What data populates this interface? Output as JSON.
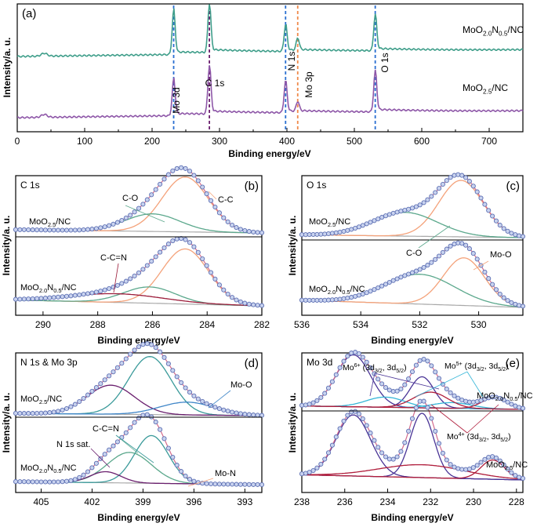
{
  "colors": {
    "frame": "#000000",
    "teal": "#3f9e8a",
    "purple": "#8e57a8",
    "blue_dash": "#2a6fd1",
    "orange_dash": "#f08a4b",
    "orange": "#f4a27a",
    "green": "#5ba88c",
    "gray": "#a8a8a8",
    "dark_red": "#9c1c3a",
    "dark_purple": "#6a1f6e",
    "mid_teal": "#3a9a9a",
    "blue": "#3f86c8",
    "indigo": "#4a3496",
    "cyan": "#36b6d8",
    "crimson": "#b01e3c",
    "marker_fill": "#c9d3ef",
    "marker_edge": "#5c6fb3"
  },
  "chart_data": [
    {
      "id": "a",
      "panel_label": "(a)",
      "type": "line",
      "xlabel": "Binding energy/eV",
      "ylabel": "Intensity/a. u.",
      "xlim": [
        0,
        750
      ],
      "x_ticks": [
        "0",
        "100",
        "200",
        "300",
        "400",
        "500",
        "600",
        "700"
      ],
      "series": [
        {
          "name": "MoO2.0N0.5/NC",
          "label_main": "MoO",
          "sub1": "2.0",
          "mid": "N",
          "sub2": "0.5",
          "tail": "/NC",
          "color_key": "teal",
          "peaks": [
            {
              "x": 232,
              "h": 0.9
            },
            {
              "x": 285,
              "h": 1.0
            },
            {
              "x": 398,
              "h": 0.55
            },
            {
              "x": 416,
              "h": 0.25
            },
            {
              "x": 531,
              "h": 0.75
            }
          ]
        },
        {
          "name": "MoO2.5/NC",
          "label_main": "MoO",
          "sub1": "2.5",
          "mid": "",
          "sub2": "",
          "tail": "/NC",
          "color_key": "purple",
          "peaks": [
            {
              "x": 232,
              "h": 0.75
            },
            {
              "x": 285,
              "h": 1.0
            },
            {
              "x": 398,
              "h": 0.65
            },
            {
              "x": 416,
              "h": 0.2
            },
            {
              "x": 531,
              "h": 0.85
            }
          ]
        }
      ],
      "annotations": [
        {
          "text": "Mo 3d",
          "x": 232,
          "color_key": "blue_dash"
        },
        {
          "text": "C 1s",
          "x": 285,
          "color_key": "dark_purple"
        },
        {
          "text": "N 1s",
          "x": 398,
          "color_key": "blue_dash"
        },
        {
          "text": "Mo 3p",
          "x": 416,
          "color_key": "orange_dash"
        },
        {
          "text": "O 1s",
          "x": 531,
          "color_key": "blue_dash"
        }
      ]
    },
    {
      "id": "b",
      "panel_label": "(b)",
      "title": "C 1s",
      "type": "line",
      "xlabel": "Binding energy/eV",
      "ylabel": "Intensity/a. u.",
      "xlim": [
        291,
        282
      ],
      "x_ticks": [
        "290",
        "288",
        "286",
        "284",
        "282"
      ],
      "sample_labels": [
        "MoO2.5/NC",
        "MoO2.0N0.5/NC"
      ],
      "top_components": [
        {
          "name": "C-C",
          "center": 284.8,
          "height": 1.0,
          "width": 0.85,
          "color_key": "orange"
        },
        {
          "name": "C-O",
          "center": 286.0,
          "height": 0.32,
          "width": 1.0,
          "color_key": "green"
        }
      ],
      "bottom_components": [
        {
          "name": "C-C",
          "center": 284.8,
          "height": 0.95,
          "width": 0.85,
          "color_key": "orange"
        },
        {
          "name": "C-O",
          "center": 286.1,
          "height": 0.28,
          "width": 0.95,
          "color_key": "green"
        },
        {
          "name": "C-C=N",
          "center": 287.3,
          "height": 0.15,
          "width": 1.7,
          "color_key": "dark_red"
        }
      ],
      "annotations": [
        "C-O",
        "C-C",
        "C-C=N"
      ]
    },
    {
      "id": "c",
      "panel_label": "(c)",
      "title": "O 1s",
      "type": "line",
      "xlabel": "Binding energy/eV",
      "ylabel": "Intensity/a. u.",
      "xlim": [
        536,
        528.5
      ],
      "x_ticks": [
        "536",
        "534",
        "532",
        "530"
      ],
      "sample_labels": [
        "MoO2.5/NC",
        "MoO2.0N0.5/NC"
      ],
      "top_components": [
        {
          "name": "Mo-O",
          "center": 530.6,
          "height": 1.0,
          "width": 0.75,
          "color_key": "orange"
        },
        {
          "name": "C-O",
          "center": 532.5,
          "height": 0.42,
          "width": 1.1,
          "color_key": "green"
        }
      ],
      "bottom_components": [
        {
          "name": "Mo-O",
          "center": 530.5,
          "height": 0.8,
          "width": 0.7,
          "color_key": "orange"
        },
        {
          "name": "C-O",
          "center": 532.0,
          "height": 0.5,
          "width": 1.2,
          "color_key": "green"
        }
      ],
      "annotations": [
        "C-O",
        "Mo-O"
      ]
    },
    {
      "id": "d",
      "panel_label": "(d)",
      "title": "N 1s & Mo 3p",
      "type": "line",
      "xlabel": "Binding energy/eV",
      "ylabel": "Intensity/a. u.",
      "xlim": [
        406.5,
        392
      ],
      "x_ticks": [
        "405",
        "402",
        "399",
        "396",
        "393"
      ],
      "sample_labels": [
        "MoO2.5/NC",
        "MoO2.0N0.5/NC"
      ],
      "top_components": [
        {
          "name": "C-C=N",
          "center": 398.6,
          "height": 1.0,
          "width": 1.25,
          "color_key": "mid_teal"
        },
        {
          "name": "N 1s sat.",
          "center": 400.9,
          "height": 0.5,
          "width": 1.4,
          "color_key": "dark_purple"
        },
        {
          "name": "Mo-O",
          "center": 396.4,
          "height": 0.22,
          "width": 1.6,
          "color_key": "blue"
        }
      ],
      "bottom_components": [
        {
          "name": "C-C=N",
          "center": 398.5,
          "height": 0.78,
          "width": 1.0,
          "color_key": "mid_teal"
        },
        {
          "name": "N 1s sat.",
          "center": 399.8,
          "height": 0.5,
          "width": 1.3,
          "color_key": "green"
        },
        {
          "name": "Mo-N",
          "center": 401.2,
          "height": 0.18,
          "width": 0.9,
          "color_key": "dark_purple"
        }
      ],
      "annotations": [
        "Mo-O",
        "C-C=N",
        "N 1s sat.",
        "Mo-N"
      ]
    },
    {
      "id": "e",
      "panel_label": "(e)",
      "title": "Mo 3d",
      "type": "line",
      "xlabel": "Binding energy/eV",
      "ylabel": "Intensity/a. u.",
      "xlim": [
        238,
        227.7
      ],
      "x_ticks": [
        "238",
        "236",
        "234",
        "232",
        "230",
        "228"
      ],
      "sample_labels": [
        "MoO2.0N0.5/NC",
        "MoO2.5/NC"
      ],
      "top_components": [
        {
          "name": "Mo6+ 3d3/2",
          "center": 235.6,
          "height": 0.92,
          "width": 0.8,
          "color_key": "indigo"
        },
        {
          "name": "Mo6+ 3d5/2",
          "center": 232.4,
          "height": 0.55,
          "width": 0.55,
          "color_key": "indigo"
        },
        {
          "name": "Mo5+ 3d3/2",
          "center": 234.1,
          "height": 0.18,
          "width": 0.9,
          "color_key": "cyan"
        },
        {
          "name": "Mo5+ 3d5/2",
          "center": 231.0,
          "height": 0.1,
          "width": 0.9,
          "color_key": "cyan"
        },
        {
          "name": "Mo4+ 3d3/2",
          "center": 232.0,
          "height": 0.28,
          "width": 0.8,
          "color_key": "crimson"
        },
        {
          "name": "Mo4+ 3d5/2",
          "center": 229.0,
          "height": 0.2,
          "width": 0.6,
          "color_key": "crimson"
        }
      ],
      "bottom_components": [
        {
          "name": "Mo6+ 3d3/2",
          "center": 235.6,
          "height": 0.95,
          "width": 0.8,
          "color_key": "indigo"
        },
        {
          "name": "Mo6+ 3d5/2",
          "center": 232.4,
          "height": 1.0,
          "width": 0.55,
          "color_key": "indigo"
        },
        {
          "name": "Mo4+ 3d3/2",
          "center": 232.4,
          "height": 0.2,
          "width": 2.0,
          "color_key": "crimson"
        },
        {
          "name": "Mo4+ 3d5/2",
          "center": 229.1,
          "height": 0.3,
          "width": 0.55,
          "color_key": "crimson"
        }
      ],
      "annotation_labels": {
        "mo6": "Mo",
        "mo6_sup": "6+",
        "mo5": "Mo",
        "mo5_sup": "5+",
        "mo4": "Mo",
        "mo4_sup": "4+",
        "suffix_open": "(3d",
        "sub_a": "3/2",
        "sep": ", 3d",
        "sub_b": "5/2",
        "suffix_close": ")"
      }
    }
  ]
}
